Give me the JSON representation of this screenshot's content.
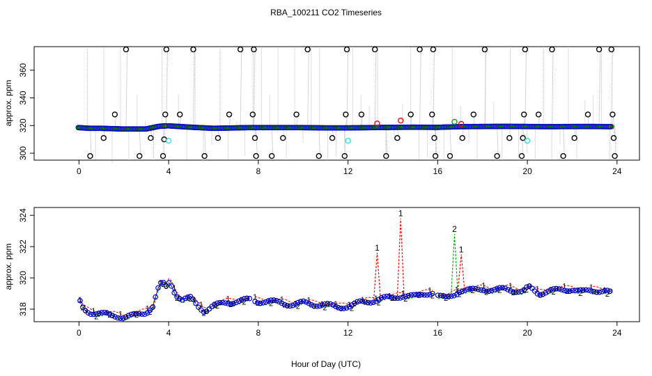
{
  "title": "RBA_100211  CO2 Timeseries",
  "xlabel": "Hour of Day (UTC)",
  "colors": {
    "black": "#000000",
    "red": "#ff0000",
    "green": "#00b000",
    "blue": "#0000cc",
    "cyan": "#33dddd",
    "gray": "#aaaaaa"
  },
  "chart_data": [
    {
      "type": "scatter",
      "ylabel": "approx. ppm",
      "xlim": [
        -2,
        25
      ],
      "ylim": [
        295,
        377
      ],
      "xticks": [
        0,
        4,
        8,
        12,
        16,
        20,
        24
      ],
      "yticks": [
        300,
        320,
        340,
        360
      ],
      "baseline": [
        [
          0,
          318.5
        ],
        [
          0.5,
          318
        ],
        [
          1,
          318
        ],
        [
          2,
          317.5
        ],
        [
          3,
          317.5
        ],
        [
          3.6,
          319.5
        ],
        [
          4,
          319.8
        ],
        [
          5,
          318.8
        ],
        [
          6,
          318
        ],
        [
          7,
          318.3
        ],
        [
          7.5,
          318.5
        ],
        [
          8,
          318.5
        ],
        [
          9,
          318.5
        ],
        [
          10,
          318.5
        ],
        [
          11,
          318.3
        ],
        [
          12,
          318.3
        ],
        [
          13,
          318.5
        ],
        [
          14,
          318.7
        ],
        [
          15,
          318.8
        ],
        [
          16,
          318.7
        ],
        [
          17,
          319.2
        ],
        [
          18,
          319.3
        ],
        [
          19,
          319.4
        ],
        [
          20,
          319.3
        ],
        [
          21,
          319.2
        ],
        [
          22,
          319.3
        ],
        [
          23,
          319.3
        ],
        [
          23.7,
          319.2
        ]
      ],
      "series": [
        {
          "color": "black",
          "points": [
            [
              0.5,
              298
            ],
            [
              1.1,
              311
            ],
            [
              1.6,
              328
            ],
            [
              2.1,
              375
            ],
            [
              2.7,
              298
            ],
            [
              3.2,
              311
            ],
            [
              3.75,
              298
            ],
            [
              3.85,
              328
            ],
            [
              3.9,
              375
            ],
            [
              3.8,
              310
            ],
            [
              4.5,
              328
            ],
            [
              5.1,
              375
            ],
            [
              5.6,
              298
            ],
            [
              6.2,
              311
            ],
            [
              6.7,
              328
            ],
            [
              7.2,
              375
            ],
            [
              7.75,
              328
            ],
            [
              7.8,
              375
            ],
            [
              7.85,
              311
            ],
            [
              7.9,
              298
            ],
            [
              8.6,
              298
            ],
            [
              9.1,
              311
            ],
            [
              9.7,
              328
            ],
            [
              10.2,
              375
            ],
            [
              10.7,
              298
            ],
            [
              11.3,
              311
            ],
            [
              11.85,
              298
            ],
            [
              11.9,
              328
            ],
            [
              11.95,
              375
            ],
            [
              12.6,
              328
            ],
            [
              13.2,
              375
            ],
            [
              13.7,
              298
            ],
            [
              14.2,
              311
            ],
            [
              14.8,
              328
            ],
            [
              15.2,
              375
            ],
            [
              15.75,
              328
            ],
            [
              15.8,
              375
            ],
            [
              15.85,
              311
            ],
            [
              15.9,
              298
            ],
            [
              16.55,
              298
            ],
            [
              17.1,
              311
            ],
            [
              17.6,
              328
            ],
            [
              18.1,
              375
            ],
            [
              18.65,
              298
            ],
            [
              19.2,
              311
            ],
            [
              19.75,
              298
            ],
            [
              19.85,
              328
            ],
            [
              19.9,
              375
            ],
            [
              19.8,
              311
            ],
            [
              20.5,
              328
            ],
            [
              21.1,
              375
            ],
            [
              21.6,
              298
            ],
            [
              22.1,
              311
            ],
            [
              22.7,
              328
            ],
            [
              23.2,
              375
            ],
            [
              23.75,
              375
            ],
            [
              23.8,
              328
            ],
            [
              23.85,
              311
            ],
            [
              23.9,
              298
            ]
          ]
        },
        {
          "color": "red",
          "points": [
            [
              13.3,
              321.5
            ],
            [
              14.35,
              323.6
            ],
            [
              17.05,
              321.2
            ]
          ]
        },
        {
          "color": "green",
          "points": [
            [
              16.75,
              322.7
            ]
          ]
        },
        {
          "color": "cyan",
          "points": [
            [
              4.0,
              309
            ],
            [
              12.0,
              309
            ],
            [
              20.0,
              309
            ]
          ]
        }
      ]
    },
    {
      "type": "line",
      "ylabel": "approx. ppm",
      "xlim": [
        -2,
        25
      ],
      "ylim": [
        317.2,
        324.5
      ],
      "xticks": [
        0,
        4,
        8,
        12,
        16,
        20,
        24
      ],
      "yticks": [
        318,
        320,
        322,
        324
      ],
      "baseline": [
        [
          0,
          318.6
        ],
        [
          0.2,
          318.0
        ],
        [
          0.5,
          317.8
        ],
        [
          1,
          317.7
        ],
        [
          1.5,
          317.6
        ],
        [
          2,
          317.5
        ],
        [
          2.5,
          317.6
        ],
        [
          3,
          317.8
        ],
        [
          3.3,
          318.2
        ],
        [
          3.5,
          319.2
        ],
        [
          3.7,
          319.7
        ],
        [
          3.9,
          319.4
        ],
        [
          4.05,
          319.8
        ],
        [
          4.3,
          319.0
        ],
        [
          4.6,
          318.6
        ],
        [
          5,
          318.7
        ],
        [
          5.3,
          318.2
        ],
        [
          5.6,
          317.9
        ],
        [
          6,
          318.2
        ],
        [
          6.5,
          318.4
        ],
        [
          7,
          318.5
        ],
        [
          7.6,
          318.6
        ],
        [
          8,
          318.5
        ],
        [
          8.5,
          318.5
        ],
        [
          9,
          318.4
        ],
        [
          9.5,
          318.3
        ],
        [
          10,
          318.4
        ],
        [
          10.5,
          318.3
        ],
        [
          11,
          318.3
        ],
        [
          11.5,
          318.1
        ],
        [
          12,
          318.2
        ],
        [
          12.5,
          318.4
        ],
        [
          13,
          318.5
        ],
        [
          13.5,
          318.7
        ],
        [
          14,
          318.7
        ],
        [
          14.5,
          318.9
        ],
        [
          15,
          318.8
        ],
        [
          15.5,
          319.0
        ],
        [
          15.8,
          319.1
        ],
        [
          16.05,
          318.8
        ],
        [
          16.4,
          318.7
        ],
        [
          16.8,
          319.0
        ],
        [
          17,
          319.2
        ],
        [
          17.5,
          319.2
        ],
        [
          18,
          319.3
        ],
        [
          18.5,
          319.2
        ],
        [
          19,
          319.3
        ],
        [
          19.5,
          319.2
        ],
        [
          19.8,
          319.1
        ],
        [
          20.05,
          319.4
        ],
        [
          20.5,
          319.0
        ],
        [
          21,
          319.2
        ],
        [
          21.5,
          319.2
        ],
        [
          22,
          319.3
        ],
        [
          22.5,
          319.1
        ],
        [
          23,
          319.2
        ],
        [
          23.5,
          319.2
        ],
        [
          23.75,
          319.0
        ]
      ],
      "spikes": [
        {
          "color": "red",
          "label": "1",
          "x": 13.3,
          "y": 321.6
        },
        {
          "color": "red",
          "label": "1",
          "x": 14.35,
          "y": 323.8
        },
        {
          "color": "green",
          "label": "2",
          "x": 16.75,
          "y": 322.8
        },
        {
          "color": "red",
          "label": "1",
          "x": 17.05,
          "y": 321.5
        }
      ]
    }
  ]
}
